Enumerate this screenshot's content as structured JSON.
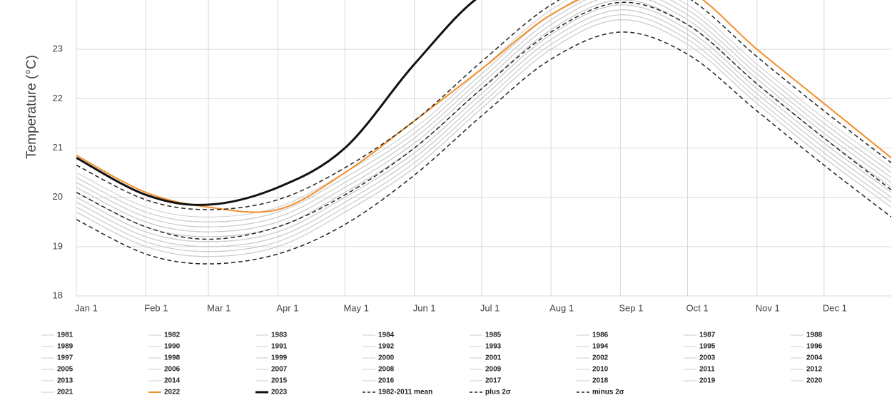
{
  "chart_data": {
    "type": "line",
    "y_label": "Temperature (°C)",
    "x": [
      1,
      32,
      60,
      91,
      121,
      152,
      182,
      213,
      244,
      274,
      305,
      335,
      365
    ],
    "xlim": [
      1,
      365
    ],
    "xticks": [
      {
        "value": 1,
        "label": "Jan 1"
      },
      {
        "value": 32,
        "label": "Feb 1"
      },
      {
        "value": 60,
        "label": "Mar 1"
      },
      {
        "value": 91,
        "label": "Apr 1"
      },
      {
        "value": 121,
        "label": "May 1"
      },
      {
        "value": 152,
        "label": "Jun 1"
      },
      {
        "value": 182,
        "label": "Jul 1"
      },
      {
        "value": 213,
        "label": "Aug 1"
      },
      {
        "value": 244,
        "label": "Sep 1"
      },
      {
        "value": 274,
        "label": "Oct 1"
      },
      {
        "value": 305,
        "label": "Nov 1"
      },
      {
        "value": 335,
        "label": "Dec 1"
      }
    ],
    "ylim": [
      18,
      24
    ],
    "yticks": [
      18,
      19,
      20,
      21,
      22,
      23
    ],
    "grid": true,
    "series": [
      {
        "name": "1981",
        "color": "#cccccc",
        "values": [
          19.7,
          19.0,
          18.8,
          19.0,
          19.7,
          20.6,
          21.8,
          23.0,
          23.6,
          23.1,
          21.9,
          20.8,
          19.8
        ]
      },
      {
        "name": "1982",
        "color": "#cccccc",
        "values": [
          19.8,
          19.1,
          18.9,
          19.1,
          19.8,
          20.7,
          21.9,
          23.1,
          23.7,
          23.2,
          22.0,
          20.9,
          19.9
        ]
      },
      {
        "name": "1983",
        "color": "#cccccc",
        "values": [
          19.9,
          19.2,
          19.0,
          19.2,
          19.9,
          20.8,
          22.0,
          23.2,
          23.8,
          23.3,
          22.1,
          21.0,
          20.0
        ]
      },
      {
        "name": "1984",
        "color": "#cccccc",
        "values": [
          19.7,
          19.0,
          18.8,
          19.0,
          19.7,
          20.6,
          21.8,
          23.0,
          23.6,
          23.1,
          21.9,
          20.8,
          19.8
        ]
      },
      {
        "name": "1985",
        "color": "#cccccc",
        "values": [
          19.7,
          19.0,
          18.8,
          19.0,
          19.7,
          20.6,
          21.8,
          23.0,
          23.6,
          23.1,
          21.9,
          20.8,
          19.8
        ]
      },
      {
        "name": "1986",
        "color": "#cccccc",
        "values": [
          19.8,
          19.1,
          18.9,
          19.1,
          19.8,
          20.7,
          21.9,
          23.1,
          23.7,
          23.2,
          22.0,
          20.9,
          19.9
        ]
      },
      {
        "name": "1987",
        "color": "#cccccc",
        "values": [
          20.0,
          19.3,
          19.1,
          19.3,
          20.0,
          20.9,
          22.1,
          23.3,
          23.9,
          23.4,
          22.2,
          21.1,
          20.1
        ]
      },
      {
        "name": "1988",
        "color": "#cccccc",
        "values": [
          19.9,
          19.2,
          19.0,
          19.2,
          19.9,
          20.8,
          22.0,
          23.2,
          23.8,
          23.3,
          22.1,
          21.0,
          20.0
        ]
      },
      {
        "name": "1989",
        "color": "#cccccc",
        "values": [
          19.7,
          19.0,
          18.8,
          19.0,
          19.7,
          20.6,
          21.8,
          23.0,
          23.6,
          23.1,
          21.9,
          20.8,
          19.8
        ]
      },
      {
        "name": "1990",
        "color": "#cccccc",
        "values": [
          19.9,
          19.2,
          19.0,
          19.2,
          19.9,
          20.8,
          22.0,
          23.2,
          23.8,
          23.3,
          22.1,
          21.0,
          20.0
        ]
      },
      {
        "name": "1991",
        "color": "#cccccc",
        "values": [
          19.9,
          19.2,
          19.0,
          19.2,
          19.9,
          20.8,
          22.0,
          23.2,
          23.8,
          23.3,
          22.1,
          21.0,
          20.0
        ]
      },
      {
        "name": "1992",
        "color": "#cccccc",
        "values": [
          19.8,
          19.1,
          18.9,
          19.1,
          19.8,
          20.7,
          21.9,
          23.1,
          23.7,
          23.2,
          22.0,
          20.9,
          19.9
        ]
      },
      {
        "name": "1993",
        "color": "#cccccc",
        "values": [
          19.9,
          19.2,
          19.0,
          19.2,
          19.9,
          20.8,
          22.0,
          23.2,
          23.8,
          23.3,
          22.1,
          21.0,
          20.0
        ]
      },
      {
        "name": "1994",
        "color": "#cccccc",
        "values": [
          20.0,
          19.3,
          19.1,
          19.3,
          20.0,
          20.9,
          22.1,
          23.3,
          23.9,
          23.4,
          22.2,
          21.1,
          20.1
        ]
      },
      {
        "name": "1995",
        "color": "#cccccc",
        "values": [
          20.0,
          19.3,
          19.1,
          19.3,
          20.0,
          20.9,
          22.1,
          23.3,
          23.9,
          23.4,
          22.2,
          21.1,
          20.1
        ]
      },
      {
        "name": "1996",
        "color": "#cccccc",
        "values": [
          19.9,
          19.2,
          19.0,
          19.2,
          19.9,
          20.8,
          22.0,
          23.2,
          23.8,
          23.3,
          22.1,
          21.0,
          20.0
        ]
      },
      {
        "name": "1997",
        "color": "#cccccc",
        "values": [
          20.1,
          19.4,
          19.2,
          19.4,
          20.1,
          21.0,
          22.2,
          23.4,
          24.0,
          23.5,
          22.3,
          21.2,
          20.2
        ]
      },
      {
        "name": "1998",
        "color": "#cccccc",
        "values": [
          20.2,
          19.5,
          19.3,
          19.5,
          20.2,
          21.1,
          22.3,
          23.5,
          24.1,
          23.6,
          22.4,
          21.3,
          20.3
        ]
      },
      {
        "name": "1999",
        "color": "#cccccc",
        "values": [
          20.0,
          19.3,
          19.1,
          19.3,
          20.0,
          20.9,
          22.1,
          23.3,
          23.9,
          23.4,
          22.2,
          21.1,
          20.1
        ]
      },
      {
        "name": "2000",
        "color": "#cccccc",
        "values": [
          20.0,
          19.3,
          19.1,
          19.3,
          20.0,
          20.9,
          22.1,
          23.3,
          23.9,
          23.4,
          22.2,
          21.1,
          20.1
        ]
      },
      {
        "name": "2001",
        "color": "#cccccc",
        "values": [
          20.1,
          19.4,
          19.2,
          19.4,
          20.1,
          21.0,
          22.2,
          23.4,
          24.0,
          23.5,
          22.3,
          21.2,
          20.2
        ]
      },
      {
        "name": "2002",
        "color": "#cccccc",
        "values": [
          20.1,
          19.4,
          19.2,
          19.4,
          20.1,
          21.0,
          22.2,
          23.4,
          24.0,
          23.5,
          22.3,
          21.2,
          20.2
        ]
      },
      {
        "name": "2003",
        "color": "#cccccc",
        "values": [
          20.2,
          19.5,
          19.3,
          19.5,
          20.2,
          21.1,
          22.3,
          23.5,
          24.1,
          23.6,
          22.4,
          21.3,
          20.3
        ]
      },
      {
        "name": "2004",
        "color": "#cccccc",
        "values": [
          20.1,
          19.4,
          19.2,
          19.4,
          20.1,
          21.0,
          22.2,
          23.4,
          24.0,
          23.5,
          22.3,
          21.2,
          20.2
        ]
      },
      {
        "name": "2005",
        "color": "#cccccc",
        "values": [
          20.2,
          19.5,
          19.3,
          19.5,
          20.2,
          21.1,
          22.3,
          23.5,
          24.1,
          23.6,
          22.4,
          21.3,
          20.3
        ]
      },
      {
        "name": "2006",
        "color": "#cccccc",
        "values": [
          20.1,
          19.4,
          19.2,
          19.4,
          20.1,
          21.0,
          22.2,
          23.4,
          24.0,
          23.5,
          22.3,
          21.2,
          20.2
        ]
      },
      {
        "name": "2007",
        "color": "#cccccc",
        "values": [
          20.1,
          19.4,
          19.2,
          19.4,
          20.1,
          21.0,
          22.2,
          23.4,
          24.0,
          23.5,
          22.3,
          21.2,
          20.2
        ]
      },
      {
        "name": "2008",
        "color": "#cccccc",
        "values": [
          20.0,
          19.3,
          19.1,
          19.3,
          20.0,
          20.9,
          22.1,
          23.3,
          23.9,
          23.4,
          22.2,
          21.1,
          20.1
        ]
      },
      {
        "name": "2009",
        "color": "#cccccc",
        "values": [
          20.2,
          19.5,
          19.3,
          19.5,
          20.2,
          21.1,
          22.3,
          23.5,
          24.1,
          23.6,
          22.4,
          21.3,
          20.3
        ]
      },
      {
        "name": "2010",
        "color": "#cccccc",
        "values": [
          20.3,
          19.6,
          19.4,
          19.6,
          20.3,
          21.2,
          22.4,
          23.6,
          24.2,
          23.7,
          22.5,
          21.4,
          20.4
        ]
      },
      {
        "name": "2011",
        "color": "#cccccc",
        "values": [
          20.1,
          19.4,
          19.2,
          19.4,
          20.1,
          21.0,
          22.2,
          23.4,
          24.0,
          23.5,
          22.3,
          21.2,
          20.2
        ]
      },
      {
        "name": "2012",
        "color": "#cccccc",
        "values": [
          20.2,
          19.5,
          19.3,
          19.5,
          20.2,
          21.1,
          22.3,
          23.5,
          24.1,
          23.6,
          22.4,
          21.3,
          20.3
        ]
      },
      {
        "name": "2013",
        "color": "#cccccc",
        "values": [
          20.2,
          19.5,
          19.3,
          19.5,
          20.2,
          21.1,
          22.3,
          23.5,
          24.1,
          23.6,
          22.4,
          21.3,
          20.3
        ]
      },
      {
        "name": "2014",
        "color": "#cccccc",
        "values": [
          20.3,
          19.6,
          19.4,
          19.6,
          20.3,
          21.2,
          22.4,
          23.6,
          24.2,
          23.7,
          22.5,
          21.4,
          20.4
        ]
      },
      {
        "name": "2015",
        "color": "#cccccc",
        "values": [
          20.4,
          19.7,
          19.5,
          19.7,
          20.4,
          21.3,
          22.5,
          23.7,
          24.3,
          23.8,
          22.6,
          21.5,
          20.5
        ]
      },
      {
        "name": "2016",
        "color": "#cccccc",
        "values": [
          20.5,
          19.8,
          19.6,
          19.8,
          20.5,
          21.4,
          22.6,
          23.8,
          24.4,
          23.9,
          22.7,
          21.6,
          20.6
        ]
      },
      {
        "name": "2017",
        "color": "#cccccc",
        "values": [
          20.4,
          19.7,
          19.5,
          19.7,
          20.4,
          21.3,
          22.5,
          23.7,
          24.3,
          23.8,
          22.6,
          21.5,
          20.5
        ]
      },
      {
        "name": "2018",
        "color": "#cccccc",
        "values": [
          20.3,
          19.6,
          19.4,
          19.6,
          20.3,
          21.2,
          22.4,
          23.6,
          24.2,
          23.7,
          22.5,
          21.4,
          20.4
        ]
      },
      {
        "name": "2019",
        "color": "#cccccc",
        "values": [
          20.4,
          19.7,
          19.5,
          19.7,
          20.4,
          21.3,
          22.5,
          23.7,
          24.3,
          23.8,
          22.6,
          21.5,
          20.5
        ]
      },
      {
        "name": "2020",
        "color": "#cccccc",
        "values": [
          20.4,
          19.7,
          19.5,
          19.7,
          20.4,
          21.3,
          22.5,
          23.7,
          24.3,
          23.8,
          22.6,
          21.5,
          20.5
        ]
      },
      {
        "name": "2021",
        "color": "#cccccc",
        "values": [
          20.3,
          19.6,
          19.4,
          19.6,
          20.3,
          21.2,
          22.4,
          23.6,
          24.2,
          23.7,
          22.5,
          21.4,
          20.4
        ]
      },
      {
        "name": "2022",
        "color": "#f28e2b",
        "width": 2,
        "values": [
          20.85,
          20.1,
          19.8,
          19.75,
          20.5,
          21.55,
          22.6,
          23.7,
          24.3,
          24.2,
          23.0,
          21.9,
          20.8
        ]
      },
      {
        "name": "2023",
        "color": "#111111",
        "width": 3,
        "values": [
          20.8,
          20.05,
          19.85,
          20.2,
          21.0,
          22.7,
          24.1,
          24.6,
          null,
          null,
          null,
          null,
          null
        ]
      },
      {
        "name": "1982-2011 mean",
        "color": "#222222",
        "width": 1.5,
        "style": "dashed",
        "values": [
          20.1,
          19.4,
          19.15,
          19.4,
          20.05,
          21.0,
          22.2,
          23.35,
          23.95,
          23.5,
          22.3,
          21.2,
          20.15
        ]
      },
      {
        "name": "plus 2σ",
        "color": "#222222",
        "width": 1.5,
        "style": "dashed",
        "values": [
          20.65,
          19.95,
          19.75,
          19.95,
          20.6,
          21.55,
          22.75,
          23.9,
          24.5,
          24.05,
          22.85,
          21.75,
          20.7
        ]
      },
      {
        "name": "minus 2σ",
        "color": "#222222",
        "width": 1.5,
        "style": "dashed",
        "values": [
          19.55,
          18.85,
          18.65,
          18.85,
          19.45,
          20.45,
          21.65,
          22.8,
          23.35,
          22.9,
          21.75,
          20.65,
          19.6
        ]
      }
    ]
  }
}
